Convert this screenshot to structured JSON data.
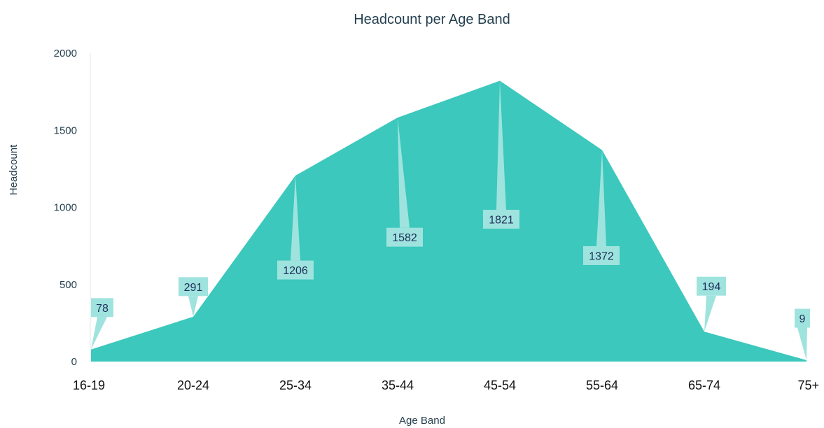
{
  "chart_data": {
    "type": "area",
    "title": "Headcount per Age Band",
    "xlabel": "Age Band",
    "ylabel": "Headcount",
    "categories": [
      "16-19",
      "20-24",
      "25-34",
      "35-44",
      "45-54",
      "55-64",
      "65-74",
      "75+"
    ],
    "values": [
      78,
      291,
      1206,
      1582,
      1821,
      1372,
      194,
      9
    ],
    "data_labels": [
      "78",
      "291",
      "1206",
      "1582",
      "1821",
      "1372",
      "194",
      "9"
    ],
    "yticks": [
      "0",
      "500",
      "1000",
      "1500",
      "2000"
    ],
    "ylim": [
      0,
      2000
    ],
    "grid": false,
    "legend": "none",
    "colors": {
      "area": "#3cc8bc",
      "callout": "#9fe3de",
      "label_text": "#1e2f5a",
      "axis_text": "#243f4f"
    }
  }
}
